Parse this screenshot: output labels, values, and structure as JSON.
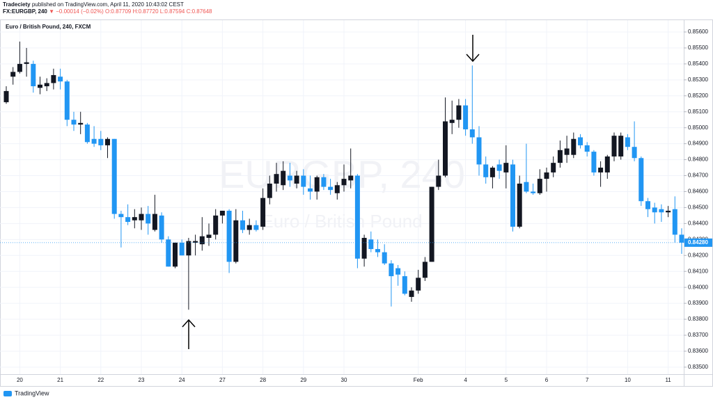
{
  "chart_data": {
    "type": "candlestick",
    "header": {
      "publisher": "Tradeciety",
      "published": "published on TradingView.com, April 11, 2020 10:43:02 CEST",
      "symbol": "FX:EURGBP, 240",
      "change": "▼ −0.00014 (−0.02%)",
      "ohlc": [
        "O:0.87709",
        "H:0.87720",
        "L:0.87594",
        "C:0.87648"
      ]
    },
    "title": "Euro / British Pound, 240, FXCM",
    "watermark": [
      "EURGBP, 240",
      "Euro / British Pound"
    ],
    "footer": "TradingView",
    "up_color": "#131722",
    "down_color": "#2196f3",
    "grid": true,
    "ylim": [
      0.83456,
      0.85674
    ],
    "yticks": [
      {
        "value": 0.835,
        "label": "0.83500"
      },
      {
        "value": 0.836,
        "label": "0.83600"
      },
      {
        "value": 0.837,
        "label": "0.83700"
      },
      {
        "value": 0.838,
        "label": "0.83800"
      },
      {
        "value": 0.839,
        "label": "0.83900"
      },
      {
        "value": 0.84,
        "label": "0.84000"
      },
      {
        "value": 0.841,
        "label": "0.84100"
      },
      {
        "value": 0.842,
        "label": "0.84200"
      },
      {
        "value": 0.843,
        "label": "0.84300"
      },
      {
        "value": 0.844,
        "label": "0.84400"
      },
      {
        "value": 0.845,
        "label": "0.84500"
      },
      {
        "value": 0.846,
        "label": "0.84600"
      },
      {
        "value": 0.847,
        "label": "0.84700"
      },
      {
        "value": 0.848,
        "label": "0.84800"
      },
      {
        "value": 0.849,
        "label": "0.84900"
      },
      {
        "value": 0.85,
        "label": "0.85000"
      },
      {
        "value": 0.851,
        "label": "0.85100"
      },
      {
        "value": 0.852,
        "label": "0.85200"
      },
      {
        "value": 0.853,
        "label": "0.85300"
      },
      {
        "value": 0.854,
        "label": "0.85400"
      },
      {
        "value": 0.855,
        "label": "0.85500"
      },
      {
        "value": 0.856,
        "label": "0.85600"
      }
    ],
    "last_price": {
      "value": 0.8428,
      "label": "0.84280"
    },
    "categories": [
      null,
      null,
      "20",
      null,
      null,
      null,
      null,
      null,
      "21",
      null,
      null,
      null,
      null,
      null,
      "22",
      null,
      null,
      null,
      null,
      null,
      "23",
      null,
      null,
      null,
      null,
      null,
      "24",
      null,
      null,
      null,
      null,
      null,
      "27",
      null,
      null,
      null,
      null,
      null,
      "28",
      null,
      null,
      null,
      null,
      null,
      "29",
      null,
      null,
      null,
      null,
      null,
      "30",
      null,
      null,
      null,
      null,
      null,
      null,
      null,
      null,
      null,
      null,
      "Feb",
      null,
      null,
      null,
      null,
      null,
      null,
      "4",
      null,
      null,
      null,
      null,
      null,
      "5",
      null,
      null,
      null,
      null,
      null,
      "6",
      null,
      null,
      null,
      null,
      null,
      "7",
      null,
      null,
      null,
      null,
      null,
      "10",
      null,
      null,
      null,
      null,
      null,
      "11",
      null,
      null
    ],
    "open": [
      0.8516,
      0.8532,
      0.8535,
      0.854,
      0.854,
      0.8525,
      0.8526,
      0.8528,
      0.8532,
      0.8529,
      0.8505,
      0.8502,
      0.8502,
      0.8493,
      0.8493,
      0.8489,
      0.8493,
      0.8446,
      0.8444,
      0.8442,
      0.8442,
      0.8446,
      0.8436,
      0.8445,
      0.843,
      0.8413,
      0.8428,
      0.842,
      0.8428,
      0.8427,
      0.8431,
      0.8433,
      0.8445,
      0.8448,
      0.8416,
      0.8442,
      0.8436,
      0.8439,
      0.8438,
      0.8456,
      0.8465,
      0.8464,
      0.847,
      0.8465,
      0.847,
      0.8462,
      0.846,
      0.8469,
      0.8463,
      0.8459,
      0.8464,
      0.8467,
      0.847,
      0.8418,
      0.843,
      0.8424,
      0.8422,
      0.8415,
      0.8412,
      0.8407,
      0.8394,
      0.8398,
      0.8406,
      0.8416,
      0.8463,
      0.847,
      0.8503,
      0.8505,
      0.8514,
      0.8499,
      0.8494,
      0.8477,
      0.8469,
      0.8477,
      0.8472,
      0.8477,
      0.8438,
      0.8466,
      0.846,
      0.8459,
      0.8468,
      0.8472,
      0.8478,
      0.8483,
      0.8483,
      0.8494,
      0.8489,
      0.8485,
      0.8472,
      0.8472,
      0.8482,
      0.8482,
      0.8494,
      0.8488,
      0.8481,
      0.8454,
      0.845,
      0.8449,
      0.8447,
      0.8449,
      0.8433
    ],
    "high": [
      0.8526,
      0.8538,
      0.8554,
      0.855,
      0.8542,
      0.8532,
      0.8531,
      0.8537,
      0.8537,
      0.853,
      0.851,
      0.851,
      0.8503,
      0.8501,
      0.8498,
      0.8494,
      0.8493,
      0.8448,
      0.8452,
      0.8449,
      0.845,
      0.8451,
      0.8458,
      0.8447,
      0.8432,
      0.8428,
      0.843,
      0.8431,
      0.8433,
      0.8444,
      0.844,
      0.8449,
      0.8448,
      0.8449,
      0.8449,
      0.8448,
      0.8443,
      0.8442,
      0.8462,
      0.847,
      0.8478,
      0.8479,
      0.8478,
      0.8473,
      0.8474,
      0.847,
      0.847,
      0.8471,
      0.8468,
      0.8466,
      0.8477,
      0.8487,
      0.8471,
      0.8433,
      0.8435,
      0.843,
      0.8427,
      0.8417,
      0.8414,
      0.841,
      0.84,
      0.8411,
      0.8419,
      0.8463,
      0.848,
      0.8519,
      0.8517,
      0.8518,
      0.8518,
      0.8539,
      0.8501,
      0.8482,
      0.8476,
      0.848,
      0.8489,
      0.848,
      0.847,
      0.849,
      0.8465,
      0.8474,
      0.8475,
      0.8482,
      0.8492,
      0.8495,
      0.8497,
      0.8496,
      0.8491,
      0.8486,
      0.8479,
      0.8483,
      0.8497,
      0.8497,
      0.8496,
      0.8504,
      0.8482,
      0.8456,
      0.8453,
      0.8452,
      0.8451,
      0.8457,
      0.8437
    ],
    "low": [
      0.8515,
      0.8527,
      0.8534,
      0.8532,
      0.8522,
      0.8521,
      0.8523,
      0.8524,
      0.8524,
      0.8501,
      0.8498,
      0.8496,
      0.849,
      0.8488,
      0.8486,
      0.8481,
      0.8443,
      0.8425,
      0.8439,
      0.8437,
      0.8436,
      0.8433,
      0.8435,
      0.8428,
      0.8413,
      0.8412,
      0.842,
      0.8386,
      0.842,
      0.8423,
      0.8426,
      0.843,
      0.844,
      0.8409,
      0.8415,
      0.8434,
      0.8433,
      0.8435,
      0.8436,
      0.8452,
      0.846,
      0.8461,
      0.8463,
      0.8462,
      0.8458,
      0.8455,
      0.8455,
      0.8461,
      0.8458,
      0.8455,
      0.846,
      0.8462,
      0.8412,
      0.8413,
      0.8422,
      0.8419,
      0.8414,
      0.8388,
      0.8401,
      0.8395,
      0.8391,
      0.8396,
      0.8404,
      0.8416,
      0.8461,
      0.8469,
      0.8496,
      0.85,
      0.8495,
      0.849,
      0.847,
      0.8465,
      0.8462,
      0.8468,
      0.8462,
      0.8435,
      0.8437,
      0.8459,
      0.8458,
      0.8458,
      0.846,
      0.8469,
      0.8475,
      0.8478,
      0.8481,
      0.8487,
      0.8482,
      0.847,
      0.8463,
      0.8468,
      0.8479,
      0.848,
      0.8486,
      0.8479,
      0.8451,
      0.8444,
      0.844,
      0.8441,
      0.8444,
      0.8428,
      0.8421
    ],
    "close": [
      0.8523,
      0.8535,
      0.854,
      0.8541,
      0.8526,
      0.8527,
      0.8528,
      0.8533,
      0.8529,
      0.8505,
      0.8502,
      0.8503,
      0.8491,
      0.849,
      0.8489,
      0.8493,
      0.8446,
      0.8444,
      0.8441,
      0.8444,
      0.8446,
      0.844,
      0.8446,
      0.843,
      0.8413,
      0.8428,
      0.842,
      0.8429,
      0.8429,
      0.8432,
      0.8433,
      0.8445,
      0.8448,
      0.8416,
      0.8442,
      0.8436,
      0.8439,
      0.8436,
      0.8456,
      0.8465,
      0.8471,
      0.8473,
      0.8467,
      0.847,
      0.8463,
      0.846,
      0.8469,
      0.8463,
      0.8461,
      0.8464,
      0.8468,
      0.847,
      0.8418,
      0.8431,
      0.8424,
      0.8422,
      0.8415,
      0.8407,
      0.8408,
      0.8396,
      0.8398,
      0.8406,
      0.8416,
      0.8463,
      0.847,
      0.8504,
      0.8505,
      0.8514,
      0.8499,
      0.8494,
      0.8477,
      0.8469,
      0.8475,
      0.8473,
      0.8478,
      0.8438,
      0.8465,
      0.846,
      0.8459,
      0.8468,
      0.8472,
      0.8478,
      0.8486,
      0.8487,
      0.8493,
      0.8489,
      0.8485,
      0.8472,
      0.8475,
      0.8482,
      0.8495,
      0.8495,
      0.8488,
      0.8481,
      0.8454,
      0.8449,
      0.8447,
      0.8447,
      0.8448,
      0.8433,
      0.8428
    ]
  }
}
